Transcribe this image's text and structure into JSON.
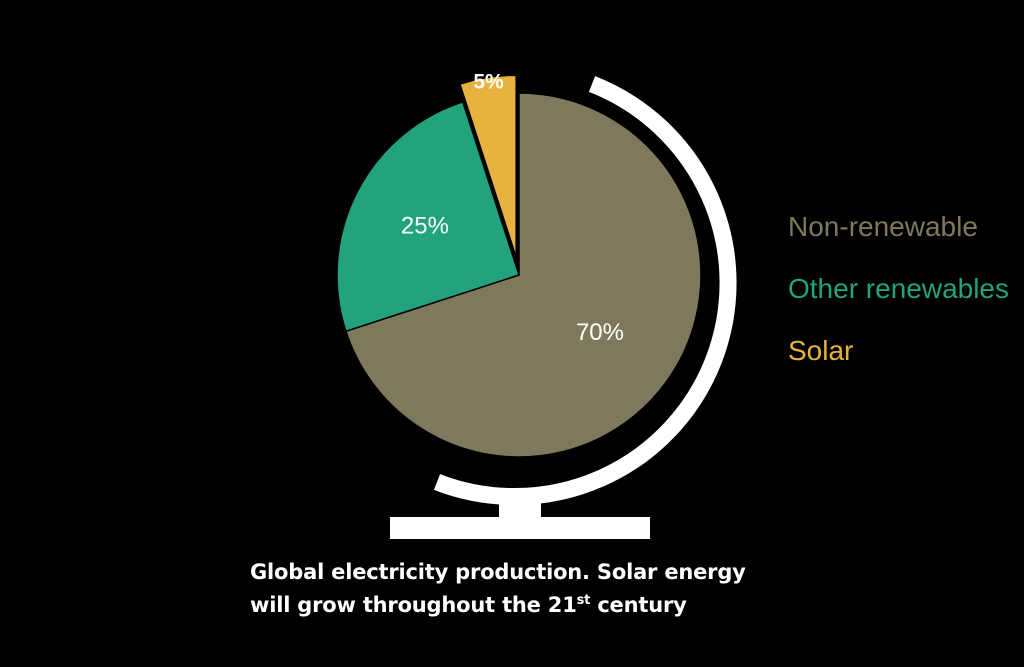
{
  "chart_data": {
    "type": "pie",
    "categories": [
      "Non-renewable",
      "Other renewables",
      "Solar"
    ],
    "values": [
      70,
      25,
      5
    ],
    "data_labels": [
      "70%",
      "25%",
      "5%"
    ],
    "colors": [
      "#7e785c",
      "#22a27d",
      "#e7b33e"
    ],
    "legend_placement": "right",
    "decoration": "globe-stand",
    "title": ""
  },
  "legend": [
    {
      "label": "Non-renewable",
      "color": "#7e785c"
    },
    {
      "label": "Other renewables",
      "color": "#22a27d"
    },
    {
      "label": "Solar",
      "color": "#e7b33e"
    }
  ],
  "caption": {
    "line1": "Global electricity production. Solar energy",
    "line2_before": "will grow throughout the 21",
    "line2_sup": "st",
    "line2_after": " century"
  }
}
